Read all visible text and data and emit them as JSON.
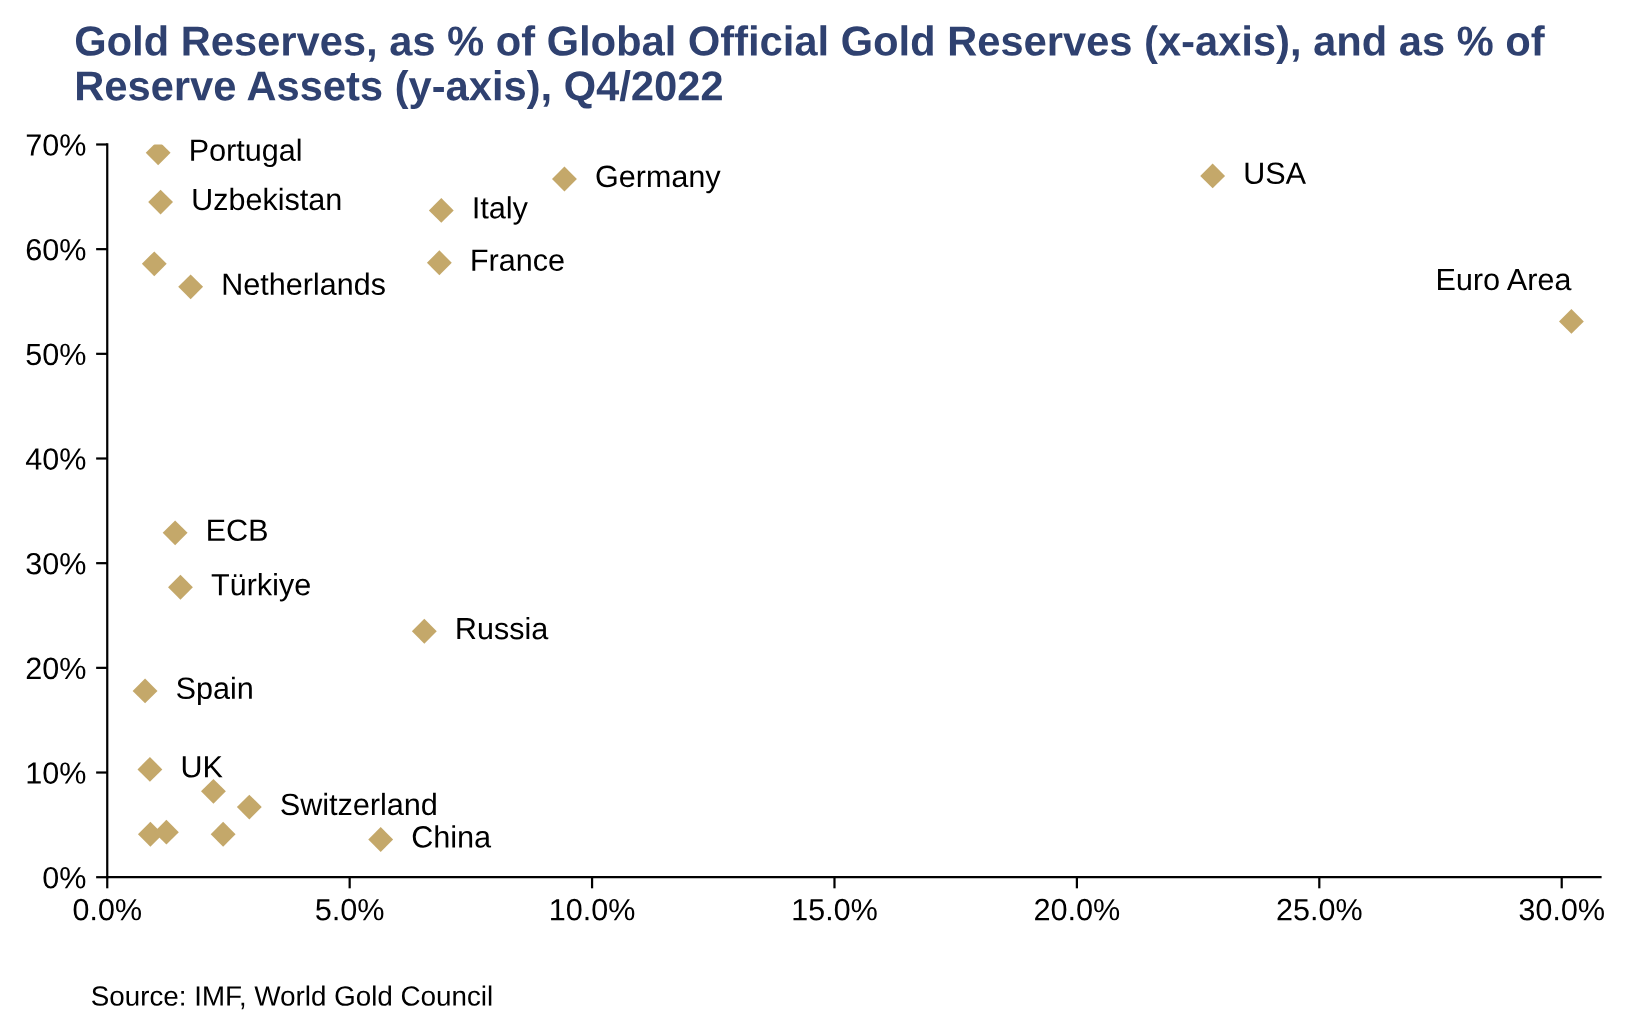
{
  "chart_data": {
    "type": "scatter",
    "title": "Gold Reserves, as % of Global Official Gold Reserves (x-axis), and as % of Reserve Assets (y-axis), Q4/2022",
    "series": [
      {
        "color": "#c4a86a",
        "x": [
          1.05,
          1.1,
          0.97,
          1.72,
          6.89,
          6.85,
          9.43,
          22.8,
          30.2,
          1.4,
          1.51,
          6.54,
          0.78,
          0.88,
          2.19,
          2.93,
          0.89,
          1.22,
          2.39,
          5.64
        ],
        "values": [
          69.2,
          64.5,
          58.6,
          56.4,
          63.7,
          58.7,
          66.7,
          67.0,
          53.1,
          32.9,
          27.7,
          23.5,
          17.8,
          10.3,
          8.2,
          6.7,
          4.1,
          4.3,
          4.1,
          3.6
        ]
      }
    ],
    "marker": "diamond",
    "xlim": [
      0,
      30.8
    ],
    "ylim": [
      0,
      70
    ],
    "xticks": [
      {
        "value": 0,
        "label": "0.0%"
      },
      {
        "value": 5,
        "label": "5.0%"
      },
      {
        "value": 10,
        "label": "10.0%"
      },
      {
        "value": 15,
        "label": "15.0%"
      },
      {
        "value": 20,
        "label": "20.0%"
      },
      {
        "value": 25,
        "label": "25.0%"
      },
      {
        "value": 30,
        "label": "30.0%"
      }
    ],
    "yticks": [
      {
        "value": 0,
        "label": "0%"
      },
      {
        "value": 10,
        "label": "10%"
      },
      {
        "value": 20,
        "label": "20%"
      },
      {
        "value": 30,
        "label": "30%"
      },
      {
        "value": 40,
        "label": "40%"
      },
      {
        "value": 50,
        "label": "50%"
      },
      {
        "value": 60,
        "label": "60%"
      },
      {
        "value": 70,
        "label": "70%"
      }
    ],
    "grid": false,
    "annotations": [
      {
        "text": "Portugal",
        "x": 1.05,
        "y": 69.2
      },
      {
        "text": "Uzbekistan",
        "x": 1.1,
        "y": 64.5
      },
      {
        "text": "Netherlands",
        "x": 1.72,
        "y": 56.4
      },
      {
        "text": "Italy",
        "x": 6.89,
        "y": 63.7
      },
      {
        "text": "France",
        "x": 6.85,
        "y": 58.7
      },
      {
        "text": "Germany",
        "x": 9.43,
        "y": 66.7
      },
      {
        "text": "USA",
        "x": 22.8,
        "y": 67.0
      },
      {
        "text": "Euro Area",
        "x": 30.2,
        "y": 53.1
      },
      {
        "text": "ECB",
        "x": 1.4,
        "y": 32.9
      },
      {
        "text": "Türkiye",
        "x": 1.51,
        "y": 27.7
      },
      {
        "text": "Russia",
        "x": 6.54,
        "y": 23.5
      },
      {
        "text": "Spain",
        "x": 0.78,
        "y": 17.8
      },
      {
        "text": "UK",
        "x": 0.88,
        "y": 10.3
      },
      {
        "text": "Switzerland",
        "x": 2.93,
        "y": 6.7
      },
      {
        "text": "China",
        "x": 5.64,
        "y": 3.6
      },
      "Source: IMF, World Gold Council"
    ]
  }
}
